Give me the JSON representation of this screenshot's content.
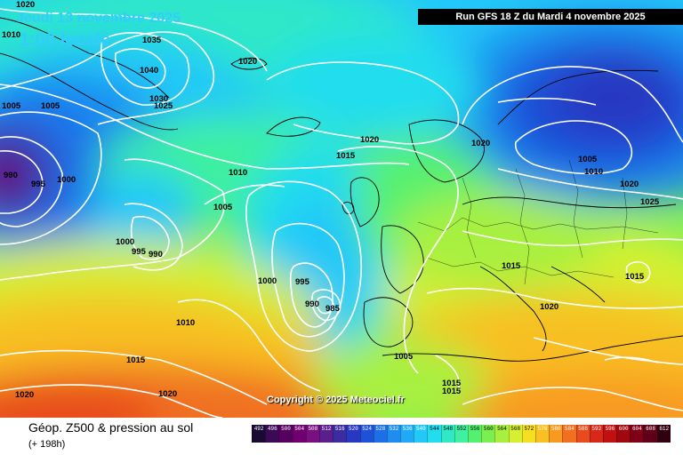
{
  "header": {
    "date_line": "Jeudi 13 novembre 2025",
    "time_line": "1:00 locale",
    "run_banner": "Run GFS 18 Z du Mardi 4 novembre 2025"
  },
  "copyright": "Copyright © 2025 Meteociel.fr",
  "footer": {
    "product_title": "Géop. Z500 & pression au sol",
    "lead_time": "(+ 198h)"
  },
  "color_scale": {
    "values": [
      "492",
      "496",
      "500",
      "504",
      "508",
      "512",
      "516",
      "520",
      "524",
      "528",
      "532",
      "536",
      "540",
      "544",
      "548",
      "552",
      "556",
      "560",
      "564",
      "568",
      "572",
      "576",
      "580",
      "584",
      "588",
      "592",
      "596",
      "600",
      "604",
      "608",
      "612"
    ],
    "colors": [
      "#1a0a33",
      "#3a0a55",
      "#55005f",
      "#700070",
      "#7a1080",
      "#5a1f8a",
      "#3c2ca0",
      "#2838c0",
      "#1f50d8",
      "#1e6ee8",
      "#1f8cf0",
      "#20aaf5",
      "#22c8f8",
      "#22ddee",
      "#2ee8c8",
      "#3ef0a0",
      "#54f070",
      "#7af050",
      "#a8f040",
      "#d4f030",
      "#f4e020",
      "#f8c020",
      "#f89a20",
      "#f07020",
      "#e84c1c",
      "#d82818",
      "#c01010",
      "#a00810",
      "#800018",
      "#600018",
      "#300010"
    ]
  },
  "isobar_labels": [
    "1020",
    "1010",
    "1005",
    "1005",
    "1035",
    "1040",
    "1030",
    "1025",
    "1020",
    "990",
    "995",
    "1000",
    "1000",
    "995",
    "990",
    "1010",
    "1005",
    "1020",
    "1015",
    "1020",
    "1005",
    "1010",
    "1020",
    "1025",
    "1000",
    "995",
    "990",
    "985",
    "1015",
    "1020",
    "1015",
    "1010",
    "1015",
    "1005",
    "1015",
    "1015",
    "1020",
    "1020"
  ]
}
